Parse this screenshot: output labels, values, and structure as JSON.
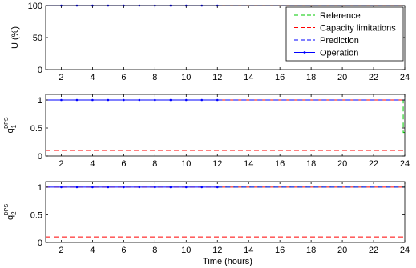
{
  "chart_data": {
    "type": "line",
    "xlabel": "Time (hours)",
    "xlim": [
      1,
      24
    ],
    "xticks": [
      2,
      4,
      6,
      8,
      10,
      12,
      14,
      16,
      18,
      20,
      22,
      24
    ],
    "legend": {
      "placement": "top-right",
      "entries": [
        {
          "name": "Reference",
          "color": "#00c800",
          "style": "dashed"
        },
        {
          "name": "Capacity limitations",
          "color": "#ff0000",
          "style": "dashed"
        },
        {
          "name": "Prediction",
          "color": "#0000ff",
          "style": "dashed"
        },
        {
          "name": "Operation",
          "color": "#0000ff",
          "style": "solid-marker"
        }
      ]
    },
    "panels": [
      {
        "ylabel": "U (%)",
        "ylabel_sub": "",
        "ylim": [
          0,
          100
        ],
        "yticks": [
          0,
          50,
          100
        ],
        "series": [
          {
            "name": "Capacity limitations",
            "color": "#ff0000",
            "style": "dashed",
            "x": [
              1,
              24
            ],
            "y": [
              100,
              100
            ]
          },
          {
            "name": "Reference",
            "color": "#00c800",
            "style": "dashed",
            "x": [
              12,
              24
            ],
            "y": [
              100,
              100
            ]
          },
          {
            "name": "Prediction",
            "color": "#0000ff",
            "style": "dashed",
            "x": [
              12,
              24
            ],
            "y": [
              100,
              100
            ]
          },
          {
            "name": "Operation",
            "color": "#0000ff",
            "style": "solid-marker",
            "x": [
              1,
              2,
              3,
              4,
              5,
              6,
              7,
              8,
              9,
              10,
              11,
              12
            ],
            "y": [
              100,
              100,
              100,
              100,
              100,
              100,
              100,
              100,
              100,
              100,
              100,
              100
            ]
          }
        ]
      },
      {
        "ylabel": "q",
        "ylabel_sub": "1",
        "ylabel_sup": "DPS",
        "ylim": [
          0,
          1.1
        ],
        "yticks": [
          0,
          0.5,
          1
        ],
        "ytick_labels": [
          "0",
          "0.5",
          "1"
        ],
        "series": [
          {
            "name": "Capacity limitations",
            "color": "#ff0000",
            "style": "dashed",
            "x": [
              1,
              24
            ],
            "y": [
              0.1,
              0.1
            ]
          },
          {
            "name": "Capacity limitations (upper)",
            "color": "#ff0000",
            "style": "dashed",
            "x": [
              1,
              24
            ],
            "y": [
              1,
              1
            ]
          },
          {
            "name": "Reference",
            "color": "#00c800",
            "style": "dashed",
            "x": [
              12,
              23.9,
              23.9,
              24
            ],
            "y": [
              1,
              1,
              0.42,
              0.42
            ]
          },
          {
            "name": "Prediction",
            "color": "#0000ff",
            "style": "dashed",
            "x": [
              12,
              24
            ],
            "y": [
              1,
              1
            ]
          },
          {
            "name": "Operation",
            "color": "#0000ff",
            "style": "solid-marker",
            "x": [
              1,
              2,
              3,
              4,
              5,
              6,
              7,
              8,
              9,
              10,
              11,
              12
            ],
            "y": [
              1,
              1,
              1,
              1,
              1,
              1,
              1,
              1,
              1,
              1,
              1,
              1
            ]
          }
        ]
      },
      {
        "ylabel": "q",
        "ylabel_sub": "2",
        "ylabel_sup": "DPS",
        "ylim": [
          0,
          1.1
        ],
        "yticks": [
          0,
          0.5,
          1
        ],
        "ytick_labels": [
          "0",
          "0.5",
          "1"
        ],
        "series": [
          {
            "name": "Capacity limitations",
            "color": "#ff0000",
            "style": "dashed",
            "x": [
              1,
              24
            ],
            "y": [
              0.1,
              0.1
            ]
          },
          {
            "name": "Capacity limitations (upper)",
            "color": "#ff0000",
            "style": "dashed",
            "x": [
              1,
              24
            ],
            "y": [
              1,
              1
            ]
          },
          {
            "name": "Reference",
            "color": "#00c800",
            "style": "dashed",
            "x": [
              12,
              24
            ],
            "y": [
              1,
              1
            ]
          },
          {
            "name": "Prediction",
            "color": "#0000ff",
            "style": "dashed",
            "x": [
              12,
              24
            ],
            "y": [
              1,
              1
            ]
          },
          {
            "name": "Operation",
            "color": "#0000ff",
            "style": "solid-marker",
            "x": [
              1,
              2,
              3,
              4,
              5,
              6,
              7,
              8,
              9,
              10,
              11,
              12
            ],
            "y": [
              1,
              1,
              1,
              1,
              1,
              1,
              1,
              1,
              1,
              1,
              1,
              1
            ]
          }
        ]
      }
    ]
  }
}
